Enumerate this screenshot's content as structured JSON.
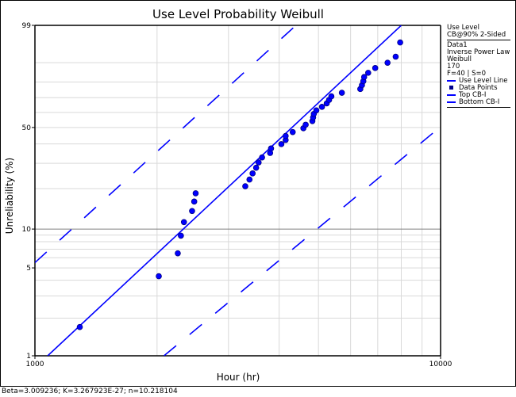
{
  "chart_data": {
    "type": "scatter",
    "title": "Use Level Probability Weibull",
    "xlabel": "Hour (hr)",
    "ylabel": "Unreliability (%)",
    "x_scale": "log",
    "y_scale": "weibull-probability",
    "xlim": [
      1000,
      10000
    ],
    "ylim": [
      1,
      99
    ],
    "x_ticks": [
      "1000",
      "10000"
    ],
    "y_ticks": [
      "1",
      "5",
      "10",
      "50",
      "99"
    ],
    "x_gridlines": [
      1000,
      2000,
      3000,
      4000,
      5000,
      6000,
      7000,
      8000,
      9000,
      10000
    ],
    "y_gridlines": [
      1,
      2,
      3,
      4,
      5,
      6,
      7,
      8,
      9,
      10,
      20,
      30,
      40,
      50,
      60,
      70,
      80,
      90,
      99
    ],
    "grid": true,
    "legend_position": "right",
    "series": [
      {
        "name": "Data Points",
        "kind": "points",
        "color": "#0000ff",
        "points": [
          {
            "x": 1290,
            "y": 1.7
          },
          {
            "x": 2020,
            "y": 4.3
          },
          {
            "x": 2250,
            "y": 6.5
          },
          {
            "x": 2290,
            "y": 8.9
          },
          {
            "x": 2330,
            "y": 11.3
          },
          {
            "x": 2440,
            "y": 13.7
          },
          {
            "x": 2470,
            "y": 16.1
          },
          {
            "x": 2490,
            "y": 18.5
          },
          {
            "x": 3300,
            "y": 20.8
          },
          {
            "x": 3380,
            "y": 23.2
          },
          {
            "x": 3440,
            "y": 25.6
          },
          {
            "x": 3510,
            "y": 28.0
          },
          {
            "x": 3560,
            "y": 30.4
          },
          {
            "x": 3630,
            "y": 32.8
          },
          {
            "x": 3800,
            "y": 35.1
          },
          {
            "x": 3820,
            "y": 37.5
          },
          {
            "x": 4050,
            "y": 39.9
          },
          {
            "x": 4150,
            "y": 42.3
          },
          {
            "x": 4150,
            "y": 44.7
          },
          {
            "x": 4320,
            "y": 47.1
          },
          {
            "x": 4590,
            "y": 49.5
          },
          {
            "x": 4650,
            "y": 51.8
          },
          {
            "x": 4830,
            "y": 54.2
          },
          {
            "x": 4850,
            "y": 56.6
          },
          {
            "x": 4870,
            "y": 59.0
          },
          {
            "x": 4940,
            "y": 61.4
          },
          {
            "x": 5100,
            "y": 63.8
          },
          {
            "x": 5240,
            "y": 66.2
          },
          {
            "x": 5310,
            "y": 68.5
          },
          {
            "x": 5380,
            "y": 70.9
          },
          {
            "x": 5710,
            "y": 73.3
          },
          {
            "x": 6340,
            "y": 75.7
          },
          {
            "x": 6400,
            "y": 78.1
          },
          {
            "x": 6450,
            "y": 80.5
          },
          {
            "x": 6480,
            "y": 82.9
          },
          {
            "x": 6630,
            "y": 85.2
          },
          {
            "x": 6900,
            "y": 87.6
          },
          {
            "x": 7400,
            "y": 90.0
          },
          {
            "x": 7750,
            "y": 92.4
          },
          {
            "x": 7950,
            "y": 96.5
          }
        ]
      },
      {
        "name": "Use Level Line",
        "kind": "line",
        "color": "#0000ff",
        "style": "solid",
        "points": [
          {
            "x": 1075,
            "y": 1
          },
          {
            "x": 8000,
            "y": 99
          }
        ]
      },
      {
        "name": "Top CB-I",
        "kind": "line",
        "color": "#0000ff",
        "style": "dashed",
        "points": [
          {
            "x": 1000,
            "y": 5.5
          },
          {
            "x": 4400,
            "y": 99
          }
        ]
      },
      {
        "name": "Bottom CB-I",
        "kind": "line",
        "color": "#0000ff",
        "style": "dashed",
        "points": [
          {
            "x": 2080,
            "y": 1
          },
          {
            "x": 10000,
            "y": 50.5
          }
        ]
      }
    ],
    "annotation": "Beta=3.009236; K=3.267923E-27; n=10.218104"
  },
  "legend": {
    "line1": "Use Level",
    "line2": "CB@90% 2-Sided",
    "line3": "Data1",
    "line4": "Inverse Power Law",
    "line5": "Weibull",
    "line6": "170",
    "line7": "F=40 | S=0",
    "items": [
      {
        "label": "Use Level Line",
        "swatch": "line"
      },
      {
        "label": "Data Points",
        "swatch": "dot"
      },
      {
        "label": "Top CB-I",
        "swatch": "line"
      },
      {
        "label": "Bottom CB-I",
        "swatch": "line"
      }
    ]
  },
  "status_bar": {
    "text": "Beta=3.009236; K=3.267923E-27; n=10.218104"
  },
  "colors": {
    "series": "#0000ff",
    "marker_edge": "#000080",
    "grid": "#d9d9d9",
    "major_grid": "#808080"
  }
}
